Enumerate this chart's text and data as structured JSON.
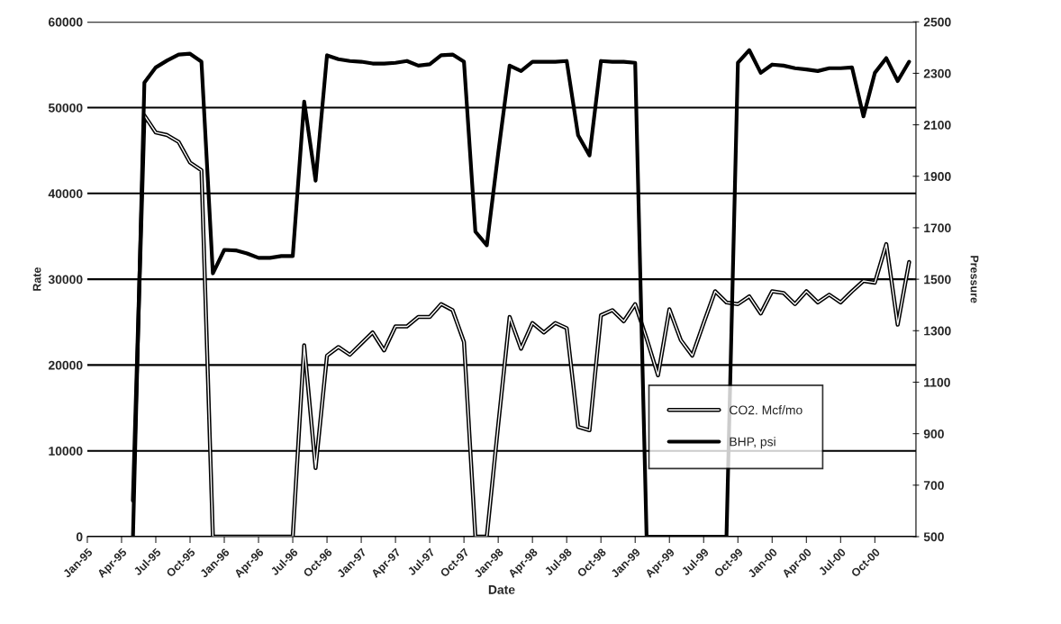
{
  "chart_data": {
    "type": "line",
    "xlabel": "Date",
    "ylabel": "Rate",
    "y2label": "Pressure",
    "categories": [
      "Jan-95",
      null,
      null,
      "Apr-95",
      null,
      null,
      "Jul-95",
      null,
      null,
      "Oct-95",
      null,
      null,
      "Jan-96",
      null,
      null,
      "Apr-96",
      null,
      null,
      "Jul-96",
      null,
      null,
      "Oct-96",
      null,
      null,
      "Jan-97",
      null,
      null,
      "Apr-97",
      null,
      null,
      "Jul-97",
      null,
      null,
      "Oct-97",
      null,
      null,
      "Jan-98",
      null,
      null,
      "Apr-98",
      null,
      null,
      "Jul-98",
      null,
      null,
      "Oct-98",
      null,
      null,
      "Jan-99",
      null,
      null,
      "Apr-99",
      null,
      null,
      "Jul-99",
      null,
      null,
      "Oct-99",
      null,
      null,
      "Jan-00",
      null,
      null,
      "Apr-00",
      null,
      null,
      "Jul-00",
      null,
      null,
      "Oct-00",
      null,
      null,
      null
    ],
    "series": [
      {
        "name": "CO2. Mcf/mo",
        "color": "#000000",
        "values": [
          null,
          null,
          null,
          null,
          4200,
          49100,
          47100,
          46800,
          46000,
          43600,
          42700,
          0,
          0,
          0,
          0,
          0,
          0,
          0,
          0,
          22300,
          8000,
          21100,
          22100,
          21200,
          22500,
          23800,
          21700,
          24500,
          24500,
          25600,
          25600,
          27100,
          26400,
          22700,
          0,
          0,
          13000,
          25600,
          21900,
          24900,
          23800,
          24900,
          24300,
          12800,
          12400,
          25800,
          26400,
          25100,
          27100,
          23100,
          18800,
          26500,
          22900,
          21100,
          24900,
          28600,
          27300,
          27100,
          28000,
          26000,
          28600,
          28400,
          27100,
          28600,
          27300,
          28200,
          27300,
          28600,
          29800,
          29600,
          34100,
          24700,
          32000
        ]
      },
      {
        "name": "BHP, psi",
        "color": "#000000",
        "axis": "y2",
        "values": [
          null,
          null,
          null,
          null,
          500,
          2264,
          2323,
          2350,
          2373,
          2376,
          2345,
          1523,
          1614,
          1612,
          1600,
          1583,
          1583,
          1590,
          1590,
          2190,
          1883,
          2370,
          2355,
          2348,
          2345,
          2338,
          2338,
          2341,
          2348,
          2330,
          2335,
          2370,
          2373,
          2345,
          1685,
          1632,
          1990,
          2330,
          2309,
          2345,
          2345,
          2345,
          2348,
          2059,
          1981,
          2348,
          2345,
          2345,
          2341,
          500,
          500,
          500,
          500,
          500,
          500,
          500,
          500,
          2341,
          2390,
          2302,
          2334,
          2330,
          2320,
          2315,
          2309,
          2320,
          2320,
          2323,
          2133,
          2302,
          2359,
          2270,
          2345
        ]
      }
    ],
    "ylim": [
      0,
      60000
    ],
    "yticks": [
      0,
      10000,
      20000,
      30000,
      40000,
      50000,
      60000
    ],
    "y2lim": [
      500,
      2500
    ],
    "y2ticks": [
      500,
      700,
      900,
      1100,
      1300,
      1500,
      1700,
      1900,
      2100,
      2300,
      2500
    ],
    "grid": "y",
    "legend": "bottom right",
    "line_style": "solid",
    "marker": "none"
  }
}
